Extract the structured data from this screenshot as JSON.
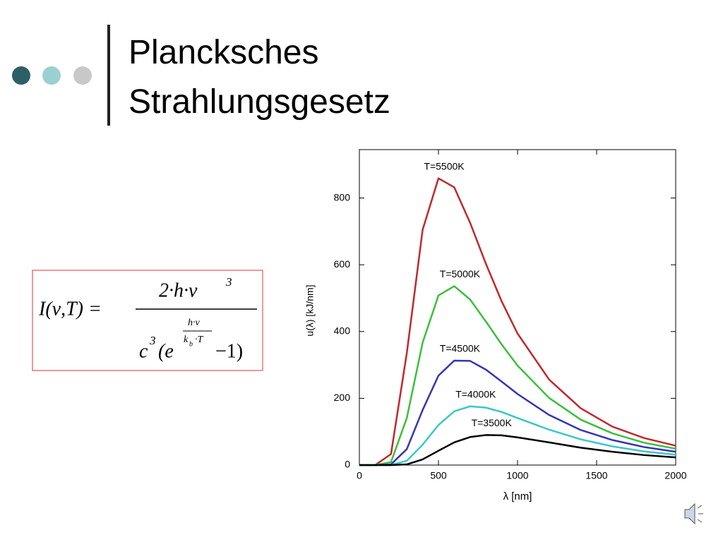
{
  "header": {
    "title": "Plancksches Strahlungsgesetz"
  },
  "formula": {
    "lhs": "I(ν,T) =",
    "numerator": "2·h·ν",
    "numerator_sup": "3",
    "denom_c": "c",
    "denom_c_sup": "3",
    "denom_open": "(e",
    "exp_num": "h·ν",
    "exp_den": "k",
    "exp_den_sub": "b",
    "exp_den_rest": "·T",
    "denom_close": "−1)"
  },
  "chart_data": {
    "type": "line",
    "xlabel": "λ [nm]",
    "ylabel": "u(λ)  [kJ/nm]",
    "x": [
      0,
      100,
      200,
      300,
      400,
      500,
      600,
      700,
      800,
      900,
      1000,
      1200,
      1400,
      1600,
      1800,
      2000
    ],
    "series": [
      {
        "name": "T=5500K",
        "color": "#c0282d",
        "values": [
          0,
          0,
          33,
          336,
          705,
          859,
          832,
          726,
          603,
          490,
          394,
          256,
          170,
          115,
          81,
          58
        ]
      },
      {
        "name": "T=5000K",
        "color": "#3cbf3c",
        "values": [
          0,
          0,
          9,
          141,
          367,
          508,
          536,
          496,
          430,
          361,
          298,
          201,
          136,
          95,
          67,
          49
        ]
      },
      {
        "name": "T=4500K",
        "color": "#3535b5",
        "values": [
          0,
          0,
          2,
          48,
          165,
          268,
          313,
          312,
          286,
          250,
          213,
          150,
          105,
          75,
          54,
          40
        ]
      },
      {
        "name": "T=4000K",
        "color": "#3cc6c6",
        "values": [
          0,
          0,
          0,
          13,
          61,
          120,
          161,
          176,
          172,
          159,
          141,
          106,
          77,
          56,
          41,
          31
        ]
      },
      {
        "name": "T=3500K",
        "color": "#000000",
        "values": [
          0,
          0,
          0,
          2,
          17,
          43,
          68,
          84,
          90,
          89,
          83,
          68,
          52,
          40,
          30,
          23
        ]
      }
    ],
    "xlim": [
      0,
      2000
    ],
    "xticks": [
      0,
      500,
      1000,
      1500,
      2000
    ],
    "ylim": [
      0,
      945
    ],
    "yticks": [
      0,
      200,
      400,
      600,
      800
    ]
  }
}
